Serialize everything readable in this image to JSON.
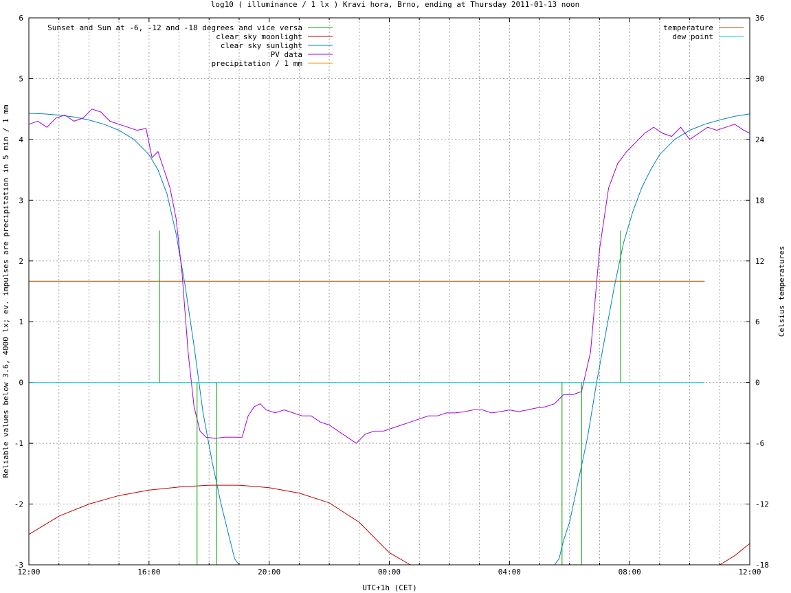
{
  "chart_data": {
    "type": "line",
    "title": "log10 ( illuminance / 1 lx ) Kravi hora, Brno, ending at Thursday 2011-01-13 noon",
    "xlabel": "UTC+1h (CET)",
    "ylabel": "Reliable values below 3.6, 4000 lx; ev. impulses are precipitation in 5 min / 1 mm",
    "y2label": "Celsius temperatures",
    "xlim": [
      0,
      24
    ],
    "ylim": [
      -3,
      6
    ],
    "y2lim": [
      -18,
      36
    ],
    "grid": true,
    "x_tick_labels": [
      {
        "x": 0,
        "label": "12:00"
      },
      {
        "x": 4,
        "label": "16:00"
      },
      {
        "x": 8,
        "label": "20:00"
      },
      {
        "x": 12,
        "label": "00:00"
      },
      {
        "x": 16,
        "label": "04:00"
      },
      {
        "x": 20,
        "label": "08:00"
      },
      {
        "x": 24,
        "label": "12:00"
      }
    ],
    "y_ticks": [
      -3,
      -2,
      -1,
      0,
      1,
      2,
      3,
      4,
      5,
      6
    ],
    "y2_ticks": [
      -18,
      -12,
      -6,
      0,
      6,
      12,
      18,
      24,
      30,
      36
    ],
    "legend_left": [
      {
        "label": "Sunset and Sun at -6, -12 and -18 degrees and vice versa",
        "color": "#00a000"
      },
      {
        "label": "clear sky moonlight",
        "color": "#c00000"
      },
      {
        "label": "clear sky sunlight",
        "color": "#0080c0"
      },
      {
        "label": "PV data",
        "color": "#a000e0"
      },
      {
        "label": "precipitation / 1 mm",
        "color": "#e0a000"
      }
    ],
    "legend_right": [
      {
        "label": "temperature",
        "color": "#a05000"
      },
      {
        "label": "dew point",
        "color": "#00d0d0"
      }
    ],
    "series": [
      {
        "name": "clear sky sunlight",
        "color": "#0080c0",
        "axis": "y",
        "x": [
          0,
          0.5,
          1,
          1.5,
          2,
          2.5,
          3,
          3.5,
          4,
          4.3,
          4.6,
          4.9,
          5.2,
          5.5,
          5.8,
          6.1,
          6.4,
          6.7,
          6.85,
          7.0,
          17.5,
          17.65,
          17.8,
          18.0,
          18.3,
          18.6,
          18.9,
          19.2,
          19.5,
          19.8,
          20.1,
          20.4,
          20.7,
          21.0,
          21.5,
          22,
          22.5,
          23,
          23.5,
          24
        ],
        "values": [
          4.43,
          4.42,
          4.4,
          4.37,
          4.32,
          4.25,
          4.15,
          4.0,
          3.75,
          3.5,
          3.1,
          2.45,
          1.6,
          0.6,
          -0.5,
          -1.3,
          -2.0,
          -2.6,
          -2.9,
          -3.0,
          -3.0,
          -2.9,
          -2.6,
          -2.3,
          -1.6,
          -0.9,
          0.0,
          0.8,
          1.6,
          2.3,
          2.8,
          3.2,
          3.5,
          3.75,
          4.0,
          4.15,
          4.25,
          4.32,
          4.38,
          4.42
        ]
      },
      {
        "name": "clear sky moonlight",
        "color": "#c00000",
        "axis": "y",
        "x": [
          0,
          1,
          2,
          3,
          4,
          5,
          6,
          7,
          8,
          9,
          10,
          11,
          11.5,
          12,
          12.7,
          23.0,
          23.5,
          24
        ],
        "values": [
          -2.5,
          -2.2,
          -2.0,
          -1.86,
          -1.77,
          -1.72,
          -1.69,
          -1.69,
          -1.73,
          -1.82,
          -1.98,
          -2.3,
          -2.55,
          -2.8,
          -3.0,
          -3.0,
          -2.85,
          -2.65
        ]
      },
      {
        "name": "PV data",
        "color": "#a000e0",
        "axis": "y",
        "x": [
          0,
          0.3,
          0.6,
          0.9,
          1.2,
          1.5,
          1.8,
          2.1,
          2.4,
          2.7,
          3.0,
          3.3,
          3.6,
          3.9,
          4.1,
          4.3,
          4.5,
          4.7,
          4.9,
          5.1,
          5.3,
          5.5,
          5.7,
          5.9,
          6.2,
          6.5,
          6.8,
          7.1,
          7.3,
          7.5,
          7.7,
          7.9,
          8.2,
          8.5,
          8.8,
          9.1,
          9.4,
          9.7,
          10.0,
          10.3,
          10.6,
          10.9,
          11.2,
          11.5,
          11.8,
          12.1,
          12.4,
          12.7,
          13.0,
          13.3,
          13.6,
          13.9,
          14.2,
          14.5,
          14.8,
          15.1,
          15.4,
          15.7,
          16.0,
          16.3,
          16.6,
          16.9,
          17.2,
          17.5,
          17.8,
          18.1,
          18.4,
          18.7,
          19.0,
          19.3,
          19.6,
          19.9,
          20.2,
          20.5,
          20.8,
          21.1,
          21.4,
          21.7,
          22.0,
          22.3,
          22.6,
          22.9,
          23.2,
          23.5,
          23.8,
          24
        ],
        "values": [
          4.25,
          4.3,
          4.2,
          4.35,
          4.4,
          4.3,
          4.35,
          4.5,
          4.45,
          4.3,
          4.25,
          4.2,
          4.15,
          4.18,
          3.7,
          3.8,
          3.5,
          3.2,
          2.7,
          1.8,
          0.5,
          -0.4,
          -0.8,
          -0.9,
          -0.92,
          -0.9,
          -0.9,
          -0.9,
          -0.55,
          -0.4,
          -0.35,
          -0.45,
          -0.5,
          -0.45,
          -0.5,
          -0.55,
          -0.55,
          -0.65,
          -0.7,
          -0.8,
          -0.9,
          -1.0,
          -0.85,
          -0.8,
          -0.8,
          -0.75,
          -0.7,
          -0.65,
          -0.6,
          -0.55,
          -0.55,
          -0.5,
          -0.5,
          -0.48,
          -0.45,
          -0.45,
          -0.5,
          -0.48,
          -0.45,
          -0.48,
          -0.45,
          -0.42,
          -0.4,
          -0.35,
          -0.2,
          -0.2,
          -0.15,
          0.5,
          2.2,
          3.2,
          3.6,
          3.8,
          3.95,
          4.1,
          4.2,
          4.1,
          4.05,
          4.2,
          4.0,
          4.1,
          4.2,
          4.15,
          4.2,
          4.25,
          4.15,
          4.1
        ]
      },
      {
        "name": "temperature",
        "color": "#a05000",
        "axis": "y2",
        "x": [
          0,
          22.5
        ],
        "values": [
          10,
          10
        ]
      },
      {
        "name": "dew point",
        "color": "#00d0d0",
        "axis": "y2",
        "x": [
          0,
          22.5
        ],
        "values": [
          0,
          0
        ]
      }
    ],
    "impulses": {
      "name": "Sunset and Sun at -6, -12 and -18 degrees and vice versa",
      "color": "#00a000",
      "items": [
        {
          "x": 4.35,
          "y": 2.5
        },
        {
          "x": 4.95,
          "y": 0.0
        },
        {
          "x": 5.6,
          "y": -3.0
        },
        {
          "x": 6.25,
          "y": -3.0
        },
        {
          "x": 17.75,
          "y": -3.0
        },
        {
          "x": 18.4,
          "y": -3.0
        },
        {
          "x": 19.05,
          "y": 0.0
        },
        {
          "x": 19.7,
          "y": 2.5
        }
      ]
    }
  }
}
